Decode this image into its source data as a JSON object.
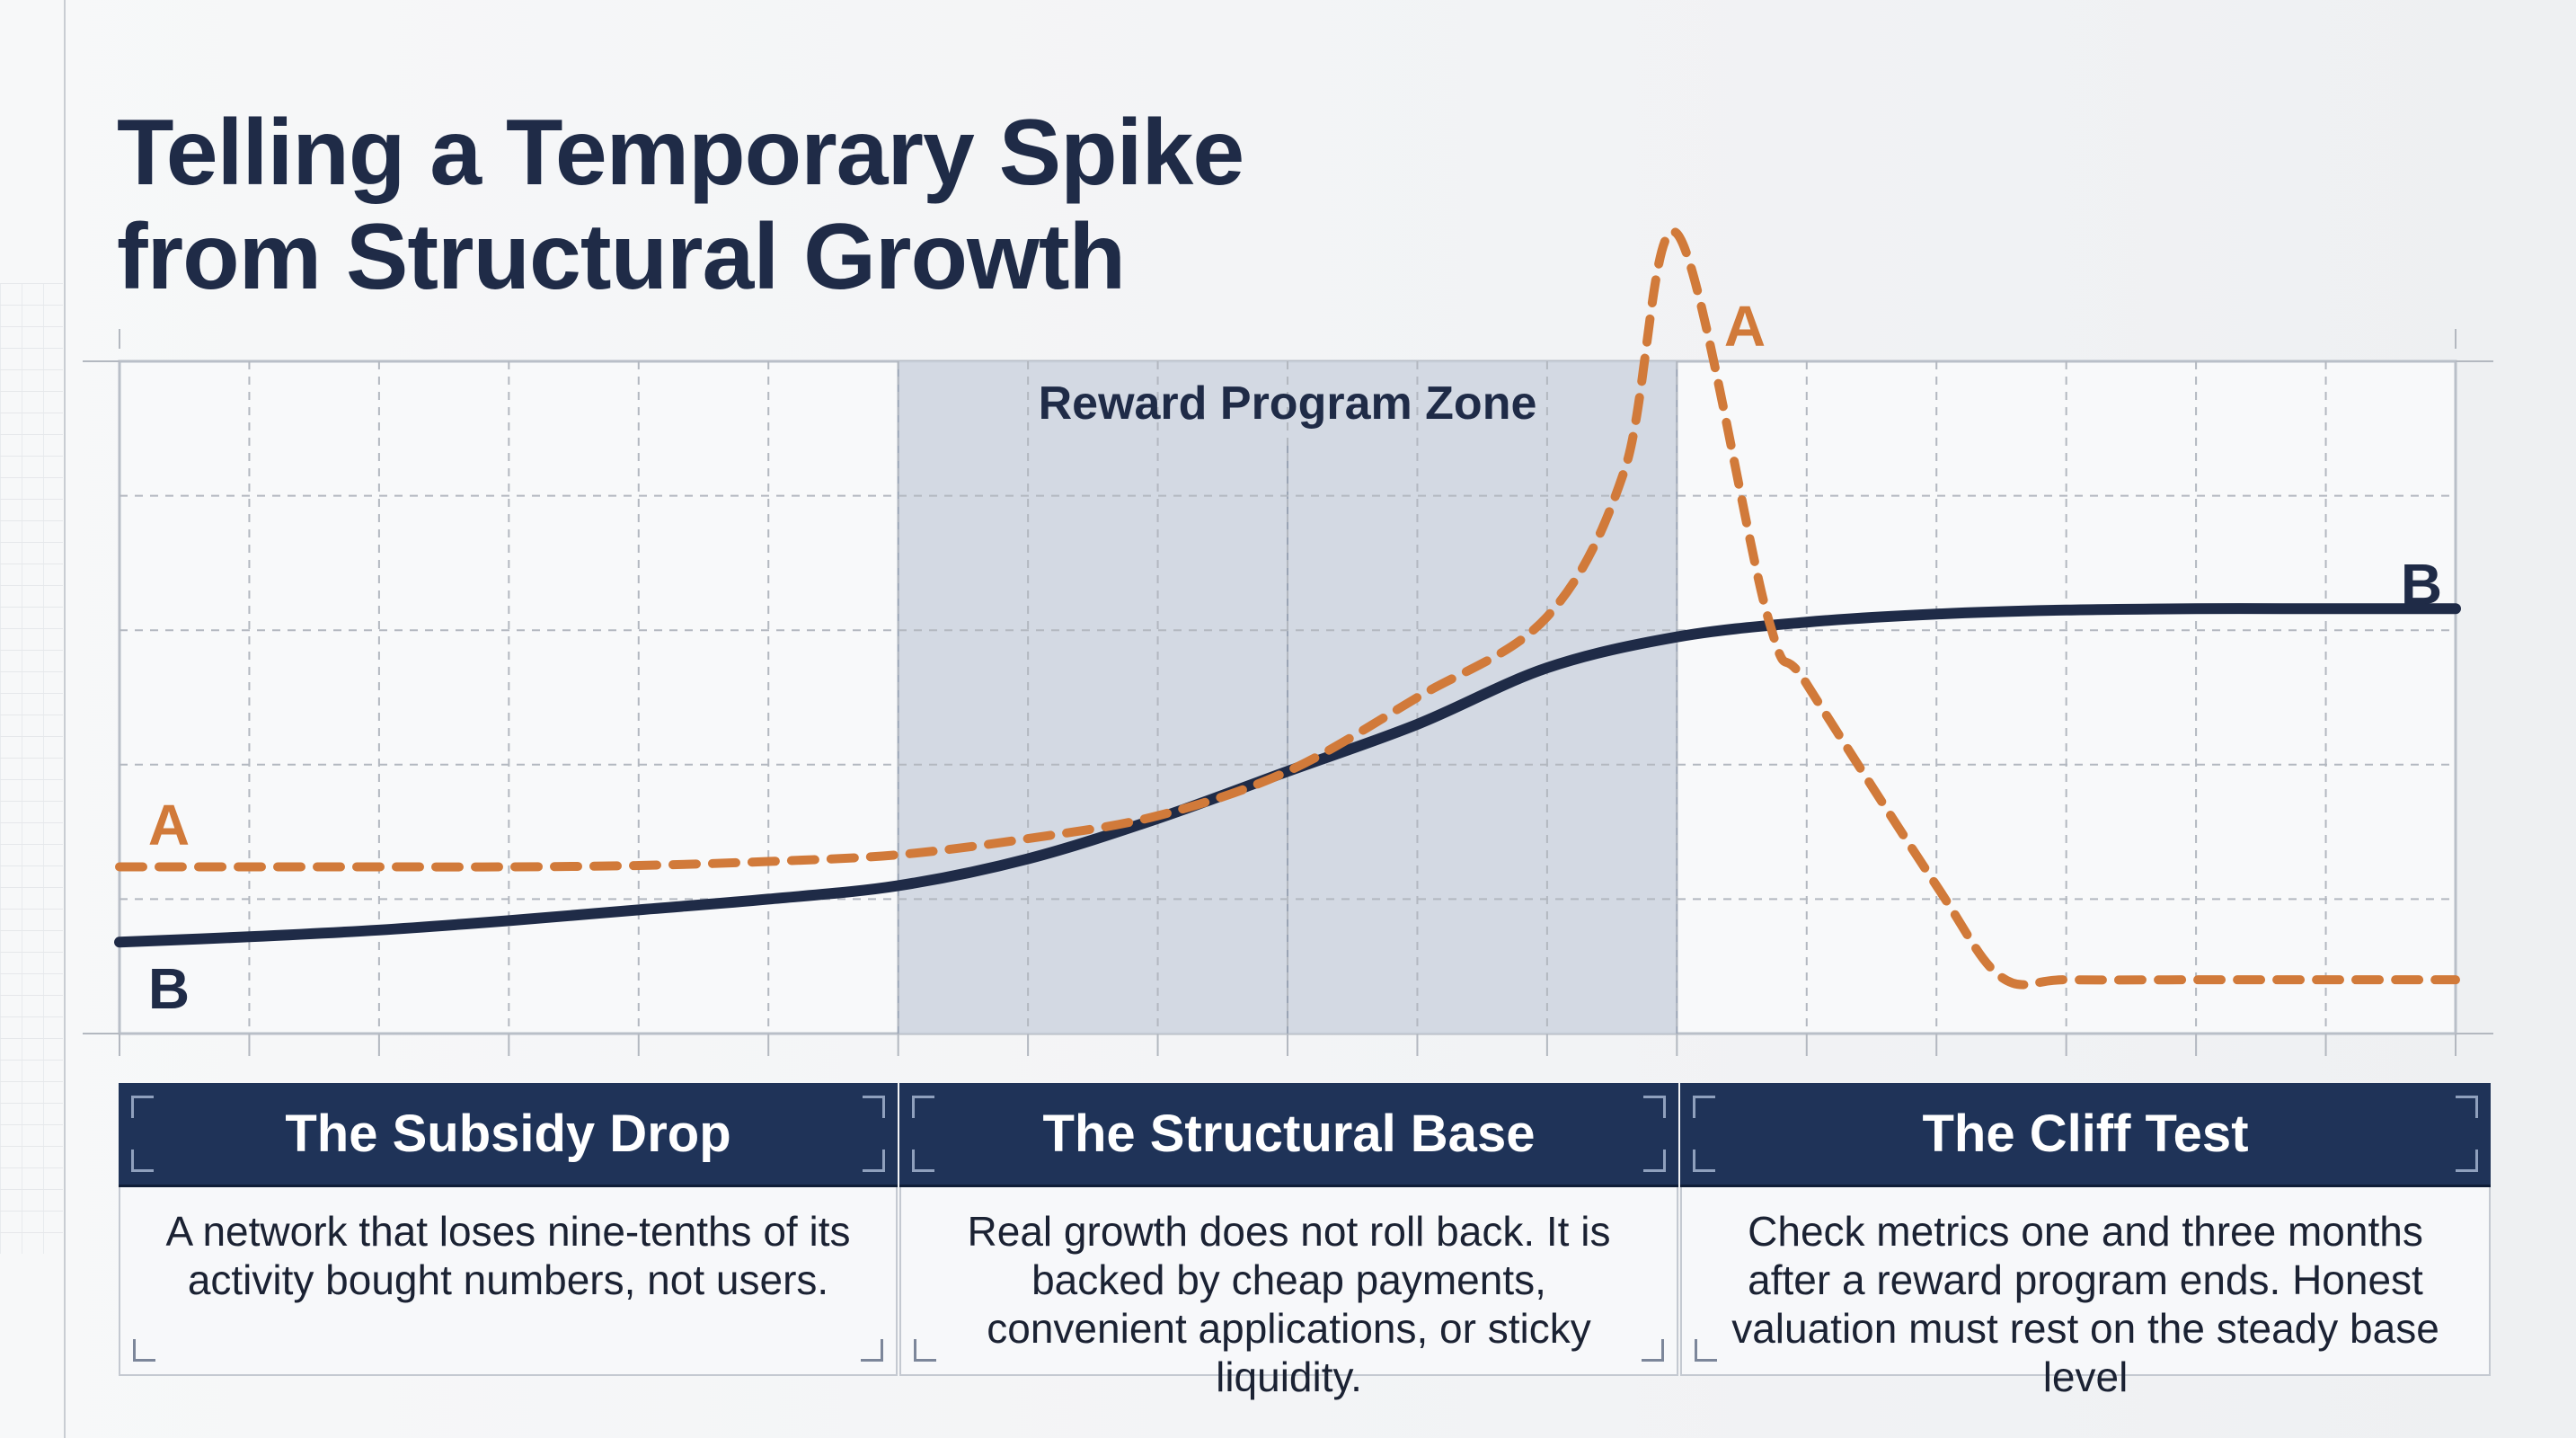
{
  "title": "Telling a Temporary Spike from Structural Growth",
  "colors": {
    "series_a": "#d17a3a",
    "series_b": "#1f2b47",
    "zone": "#cdd3de",
    "card_header": "#1f3358"
  },
  "chart_data": {
    "type": "line",
    "title": "Telling a Temporary Spike from Structural Growth",
    "xlabel": "",
    "ylabel": "",
    "xlim": [
      0,
      18
    ],
    "ylim": [
      0,
      5
    ],
    "grid": true,
    "annotations": [
      {
        "text": "Reward Program Zone",
        "x_start": 6,
        "x_end": 12
      }
    ],
    "series": [
      {
        "name": "A",
        "style": "dashed",
        "points": [
          [
            0,
            1.24
          ],
          [
            1,
            1.24
          ],
          [
            2,
            1.24
          ],
          [
            3,
            1.24
          ],
          [
            4,
            1.25
          ],
          [
            5,
            1.28
          ],
          [
            6,
            1.33
          ],
          [
            7,
            1.45
          ],
          [
            8,
            1.62
          ],
          [
            9,
            1.95
          ],
          [
            10,
            2.5
          ],
          [
            11,
            3.1
          ],
          [
            11.6,
            4.2
          ],
          [
            12,
            5.95
          ],
          [
            12.7,
            3.1
          ],
          [
            13,
            2.6
          ],
          [
            14,
            1.1
          ],
          [
            14.5,
            0.42
          ],
          [
            15,
            0.4
          ],
          [
            16,
            0.4
          ],
          [
            17,
            0.4
          ],
          [
            18,
            0.4
          ]
        ]
      },
      {
        "name": "B",
        "style": "solid",
        "points": [
          [
            0,
            0.68
          ],
          [
            1,
            0.72
          ],
          [
            2,
            0.77
          ],
          [
            3,
            0.84
          ],
          [
            4,
            0.92
          ],
          [
            5,
            1.0
          ],
          [
            6,
            1.1
          ],
          [
            7,
            1.3
          ],
          [
            8,
            1.6
          ],
          [
            9,
            1.95
          ],
          [
            10,
            2.3
          ],
          [
            11,
            2.72
          ],
          [
            12,
            2.95
          ],
          [
            13,
            3.06
          ],
          [
            14,
            3.12
          ],
          [
            15,
            3.15
          ],
          [
            16,
            3.16
          ],
          [
            17,
            3.16
          ],
          [
            18,
            3.16
          ]
        ]
      }
    ]
  },
  "labels": {
    "a_left": "A",
    "a_peak": "A",
    "b_left": "B",
    "b_right": "B"
  },
  "cards": [
    {
      "heading": "The Subsidy Drop",
      "body": "A network that loses nine-tenths of its activity bought numbers, not users."
    },
    {
      "heading": "The Structural Base",
      "body": "Real growth does not roll back. It is backed by cheap payments, convenient applications, or sticky liquidity."
    },
    {
      "heading": "The Cliff Test",
      "body": "Check metrics one and three months after a reward program ends. Honest valuation must rest on the steady base level"
    }
  ]
}
